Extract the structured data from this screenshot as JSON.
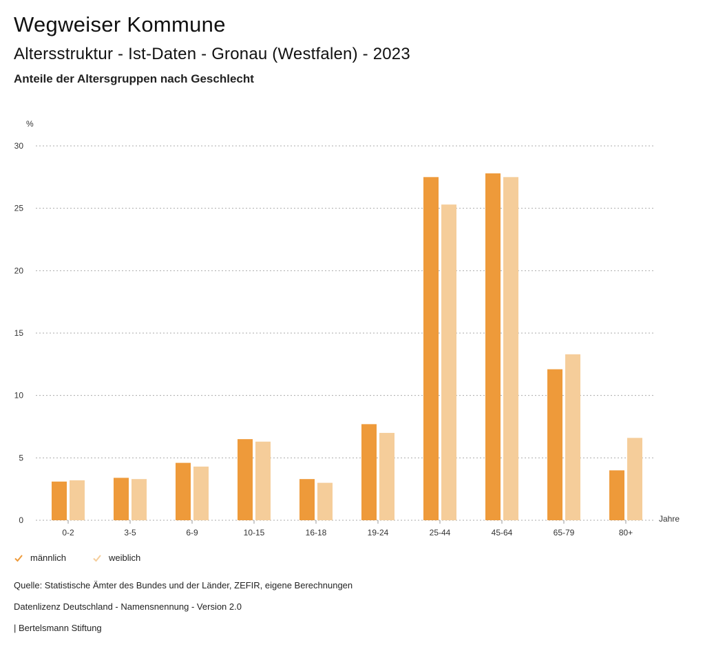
{
  "header": {
    "title": "Wegweiser Kommune",
    "subtitle": "Altersstruktur - Ist-Daten - Gronau (Westfalen) - 2023",
    "subsubtitle": "Anteile der Altersgruppen nach Geschlecht"
  },
  "legend": {
    "male_label": "männlich",
    "female_label": "weiblich"
  },
  "footer": {
    "source": "Quelle: Statistische Ämter des Bundes und der Länder, ZEFIR, eigene Berechnungen",
    "license": "Datenlizenz Deutschland - Namensnennung - Version 2.0",
    "publisher": "| Bertelsmann Stiftung"
  },
  "colors": {
    "male": "#ee9a3a",
    "female": "#f5cd9a",
    "grid": "#aaaaaa"
  },
  "chart_data": {
    "type": "bar",
    "title": "Anteile der Altersgruppen nach Geschlecht",
    "ylabel": "%",
    "xlabel": "Jahre",
    "ylim": [
      0,
      30
    ],
    "yticks": [
      0,
      5,
      10,
      15,
      20,
      25,
      30
    ],
    "grid": true,
    "legend_position": "bottom-left",
    "categories": [
      "0-2",
      "3-5",
      "6-9",
      "10-15",
      "16-18",
      "19-24",
      "25-44",
      "45-64",
      "65-79",
      "80+"
    ],
    "series": [
      {
        "name": "männlich",
        "values": [
          3.1,
          3.4,
          4.6,
          6.5,
          3.3,
          7.7,
          27.5,
          27.8,
          12.1,
          4.0
        ]
      },
      {
        "name": "weiblich",
        "values": [
          3.2,
          3.3,
          4.3,
          6.3,
          3.0,
          7.0,
          25.3,
          27.5,
          13.3,
          6.6
        ]
      }
    ]
  }
}
